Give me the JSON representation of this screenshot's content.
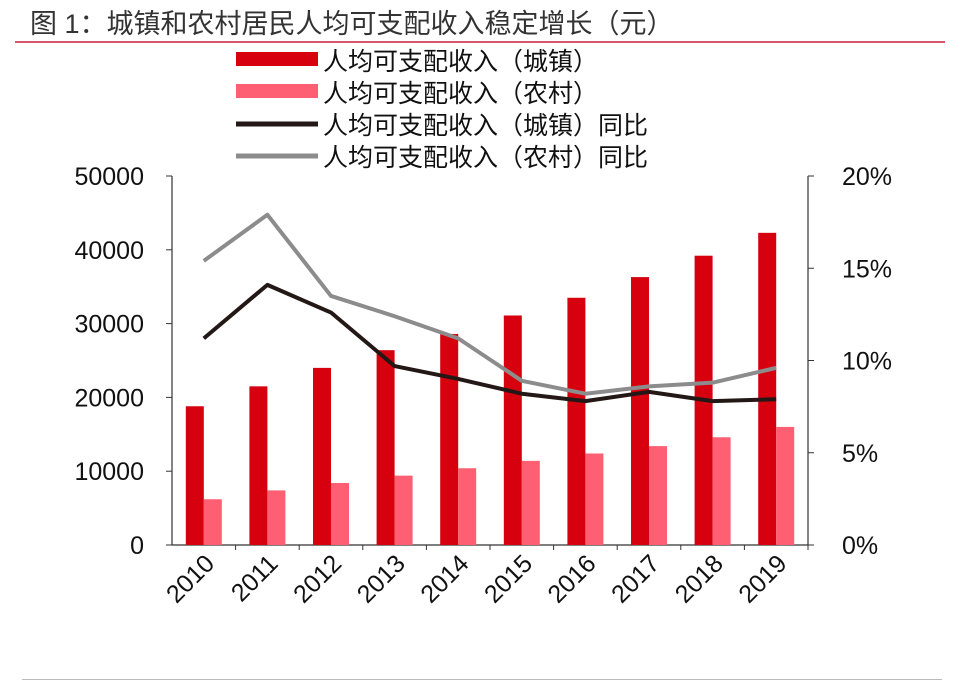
{
  "chart_data": {
    "type": "bar+line",
    "title": "图 1：城镇和农村居民人均可支配收入稳定增长（元）",
    "categories": [
      "2010",
      "2011",
      "2012",
      "2013",
      "2014",
      "2015",
      "2016",
      "2017",
      "2018",
      "2019"
    ],
    "series": [
      {
        "name": "人均可支配收入（城镇）",
        "type": "bar",
        "axis": "left",
        "color": "#d7000f",
        "values": [
          18800,
          21500,
          24000,
          26400,
          28600,
          31100,
          33500,
          36300,
          39200,
          42300
        ]
      },
      {
        "name": "人均可支配收入（农村）",
        "type": "bar",
        "axis": "left",
        "color": "#ff5f73",
        "values": [
          6200,
          7400,
          8400,
          9400,
          10400,
          11400,
          12400,
          13400,
          14600,
          16000
        ]
      },
      {
        "name": "人均可支配收入（城镇）同比",
        "type": "line",
        "axis": "right",
        "color": "#231815",
        "values": [
          11.2,
          14.1,
          12.6,
          9.7,
          9.0,
          8.2,
          7.8,
          8.3,
          7.8,
          7.9
        ]
      },
      {
        "name": "人均可支配收入（农村）同比",
        "type": "line",
        "axis": "right",
        "color": "#8c8c8c",
        "values": [
          15.4,
          17.9,
          13.5,
          12.4,
          11.2,
          8.9,
          8.2,
          8.6,
          8.8,
          9.6
        ]
      }
    ],
    "y_left": {
      "range": [
        0,
        50000
      ],
      "ticks": [
        "0",
        "10000",
        "20000",
        "30000",
        "40000",
        "50000"
      ]
    },
    "y_right": {
      "range": [
        0,
        20
      ],
      "unit": "%",
      "ticks": [
        "0%",
        "5%",
        "10%",
        "15%",
        "20%"
      ]
    },
    "legend_placement": "top-center",
    "grid": false
  }
}
